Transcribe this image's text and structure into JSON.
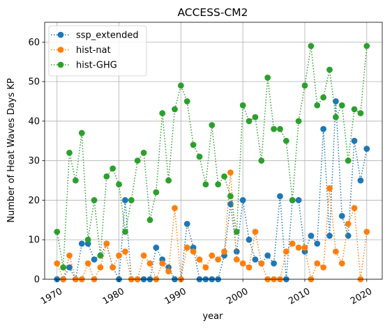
{
  "chart_data": {
    "type": "line",
    "title": "ACCESS-CM2",
    "xlabel": "year",
    "ylabel": "Number of Heat Waves Days KP",
    "xlim": [
      1968,
      2022.5
    ],
    "ylim": [
      0,
      65
    ],
    "xticks": [
      1970,
      1980,
      1990,
      2000,
      2010,
      2020
    ],
    "yticks": [
      0,
      10,
      20,
      30,
      40,
      50,
      60
    ],
    "grid": true,
    "legend_position": "top-left",
    "x": [
      1970,
      1971,
      1972,
      1973,
      1974,
      1975,
      1976,
      1977,
      1978,
      1979,
      1980,
      1981,
      1982,
      1983,
      1984,
      1985,
      1986,
      1987,
      1988,
      1989,
      1990,
      1991,
      1992,
      1993,
      1994,
      1995,
      1996,
      1997,
      1998,
      1999,
      2000,
      2001,
      2002,
      2003,
      2004,
      2005,
      2006,
      2007,
      2008,
      2009,
      2010,
      2011,
      2012,
      2013,
      2014,
      2015,
      2016,
      2017,
      2018,
      2019,
      2020
    ],
    "series": [
      {
        "name": "ssp_extended",
        "color": "#1f77b4",
        "values": [
          0,
          0,
          3,
          0,
          9,
          9,
          5,
          6,
          9,
          3,
          0,
          20,
          0,
          0,
          0,
          0,
          8,
          5,
          3,
          0,
          0,
          14,
          8,
          0,
          0,
          0,
          0,
          6,
          19,
          7,
          20,
          10,
          5,
          4,
          6,
          4,
          21,
          0,
          20,
          20,
          7,
          11,
          9,
          38,
          11,
          45,
          16,
          11,
          35,
          25,
          33
        ]
      },
      {
        "name": "hist-nat",
        "color": "#ff7f0e",
        "values": [
          4,
          0,
          6,
          0,
          0,
          4,
          0,
          3,
          9,
          3,
          6,
          7,
          0,
          0,
          6,
          4,
          0,
          4,
          2,
          18,
          0,
          8,
          7,
          5,
          3,
          6,
          5,
          7,
          27,
          5,
          4,
          3,
          12,
          4,
          0,
          0,
          0,
          7,
          9,
          8,
          8,
          0,
          4,
          3,
          23,
          7,
          4,
          14,
          18,
          0,
          12
        ]
      },
      {
        "name": "hist-GHG",
        "color": "#2ca02c",
        "values": [
          12,
          3,
          32,
          25,
          37,
          10,
          20,
          6,
          26,
          28,
          24,
          12,
          20,
          30,
          32,
          15,
          22,
          42,
          25,
          43,
          49,
          45,
          34,
          31,
          24,
          39,
          24,
          26,
          21,
          12,
          44,
          40,
          41,
          30,
          51,
          38,
          38,
          35,
          20,
          40,
          49,
          59,
          44,
          46,
          53,
          41,
          44,
          30,
          43,
          42,
          59
        ]
      }
    ]
  }
}
